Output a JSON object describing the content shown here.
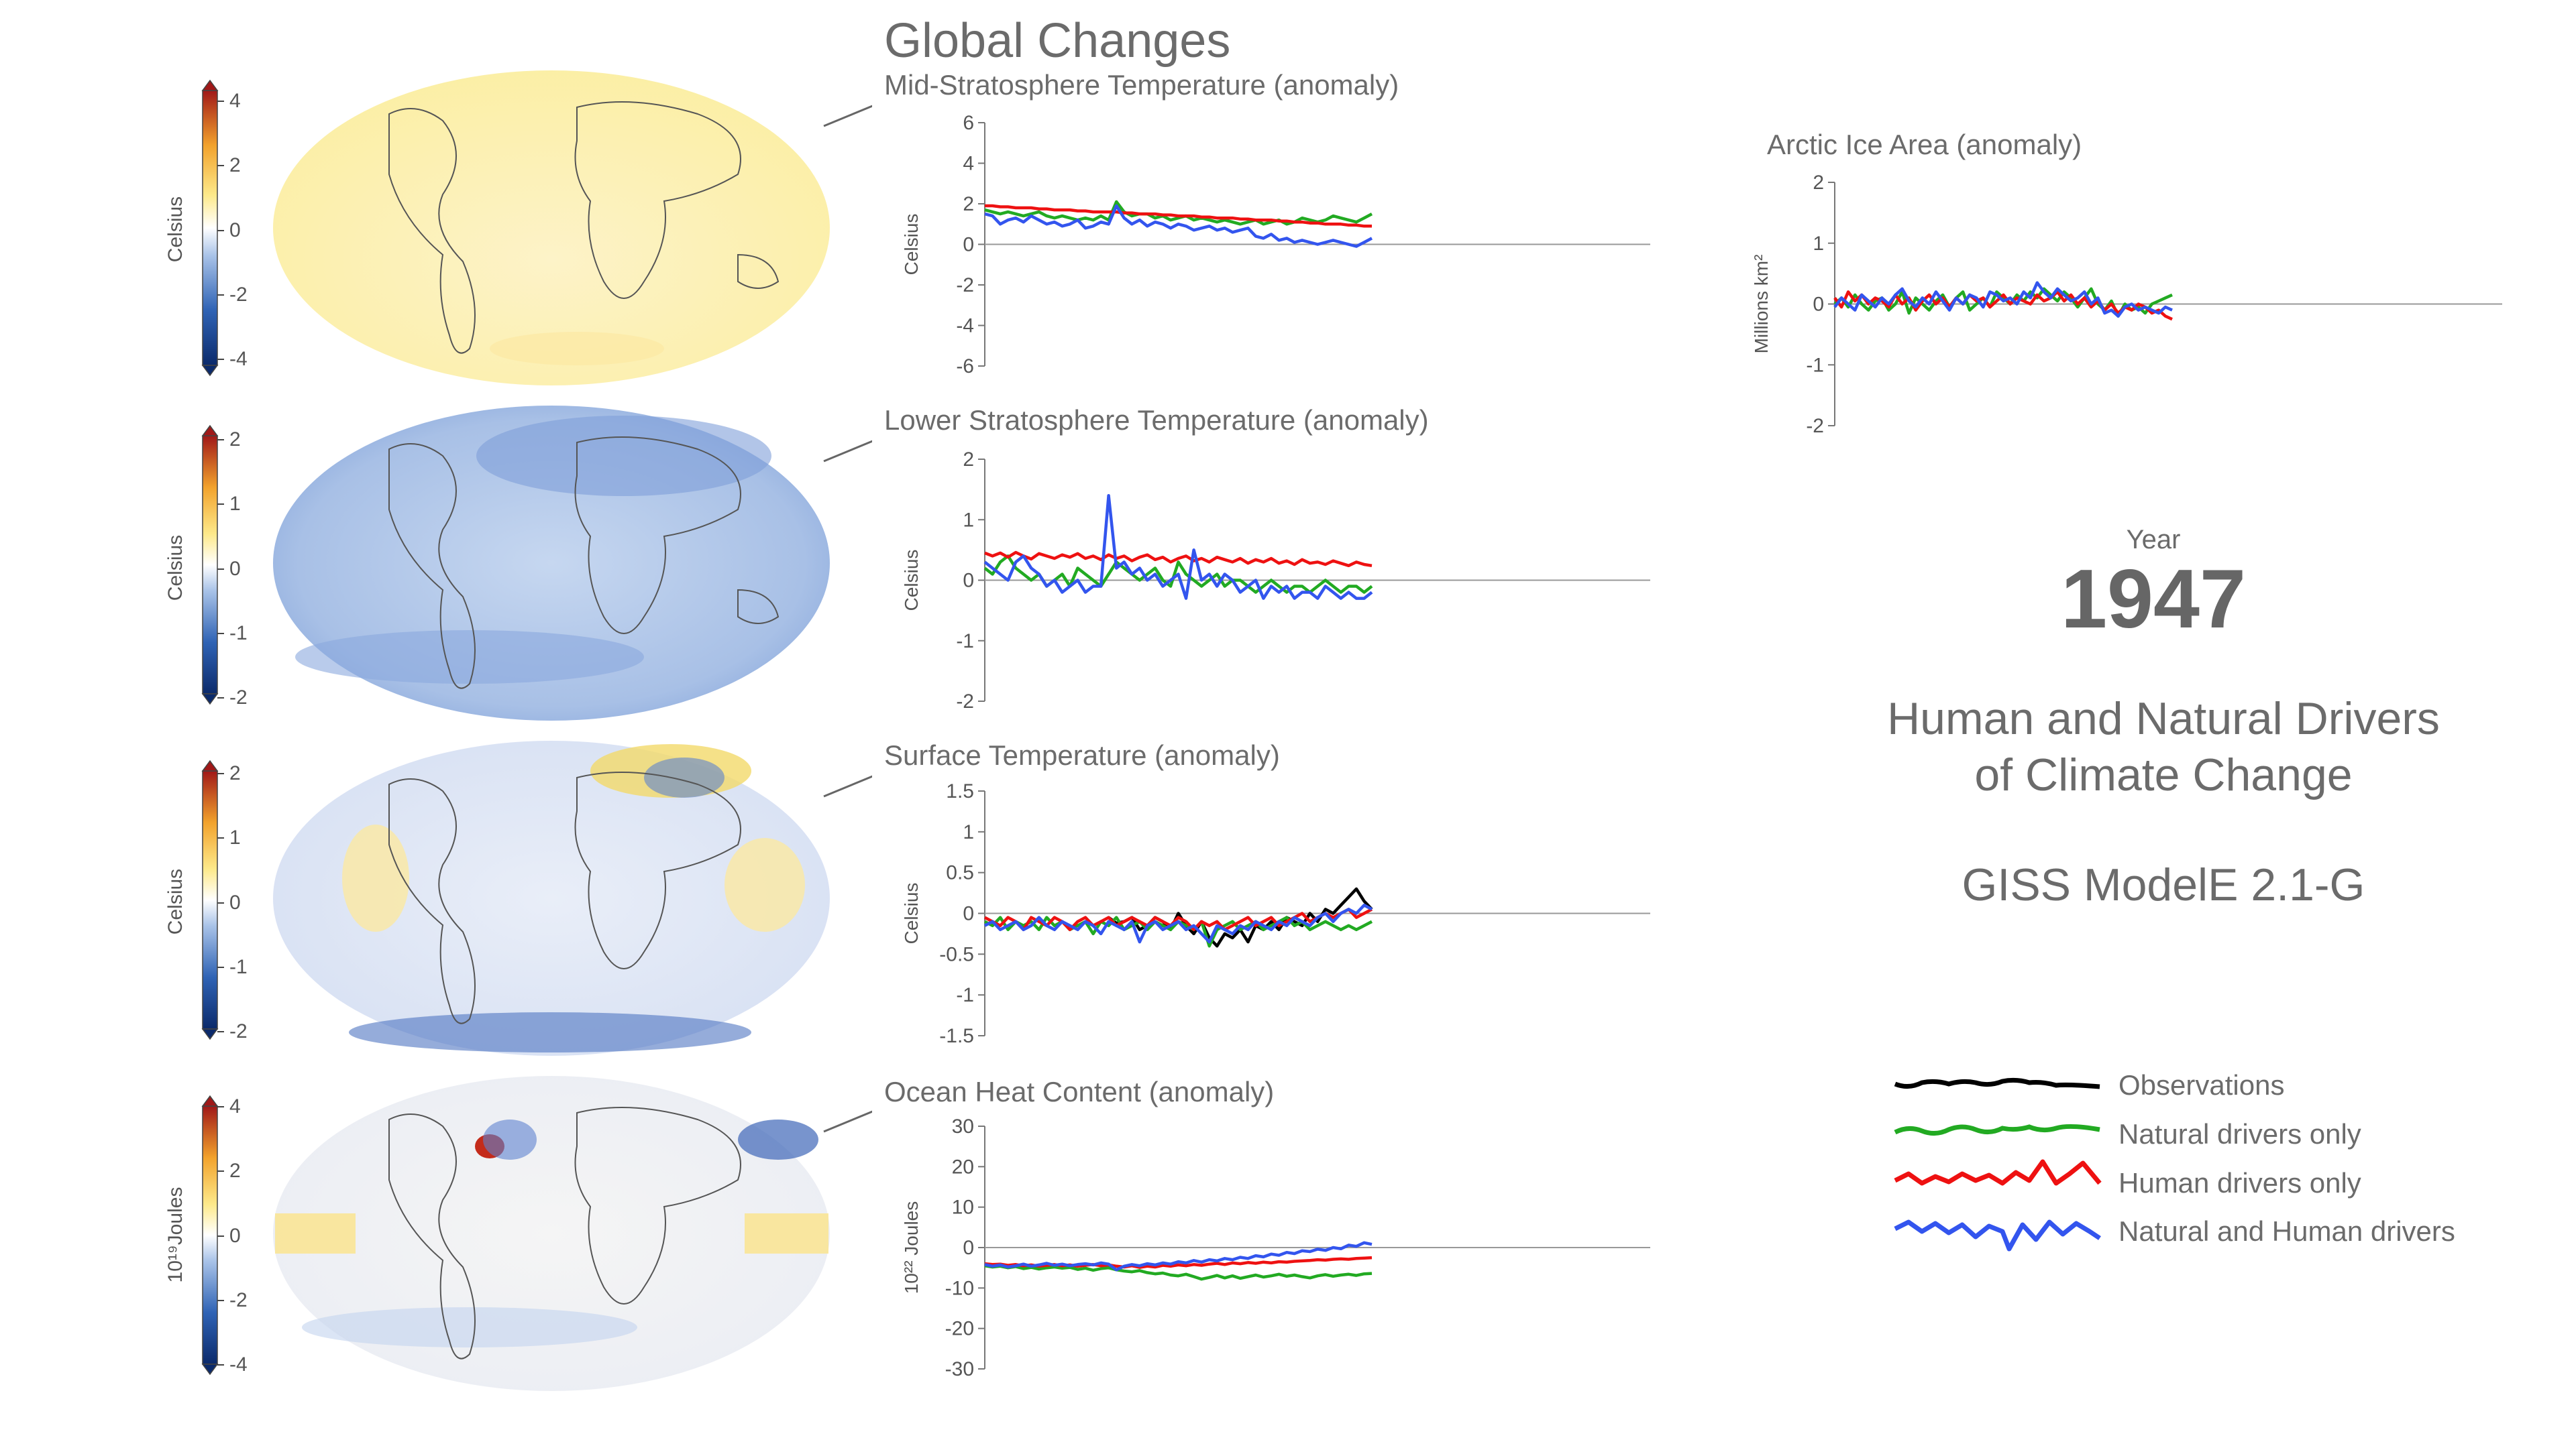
{
  "header": {
    "title": "Global Changes"
  },
  "year": {
    "label": "Year",
    "value": "1947"
  },
  "subtitle": {
    "line1": "Human and Natural Drivers",
    "line2": "of Climate Change"
  },
  "model": "GISS ModelE 2.1-G",
  "legend": {
    "items": [
      {
        "label": "Observations",
        "color": "#000000"
      },
      {
        "label": "Natural drivers only",
        "color": "#22aa22"
      },
      {
        "label": "Human drivers only",
        "color": "#ee1111"
      },
      {
        "label": "Natural and Human drivers",
        "color": "#3355ee"
      }
    ]
  },
  "colorbars": [
    {
      "label": "Celsius",
      "ticks": [
        "4",
        "2",
        "0",
        "-2",
        "-4"
      ]
    },
    {
      "label": "Celsius",
      "ticks": [
        "2",
        "1",
        "0",
        "-1",
        "-2"
      ]
    },
    {
      "label": "Celsius",
      "ticks": [
        "2",
        "1",
        "0",
        "-1",
        "-2"
      ]
    },
    {
      "label": "10¹⁹Joules",
      "ticks": [
        "4",
        "2",
        "0",
        "-2",
        "-4"
      ]
    }
  ],
  "chart_data": [
    {
      "type": "line",
      "title": "Mid-Stratosphere Temperature (anomaly)",
      "ylabel": "Celsius",
      "ylim": [
        -6,
        6
      ],
      "yticks": [
        "6",
        "4",
        "2",
        "0",
        "-2",
        "-4",
        "-6"
      ],
      "series": [
        {
          "name": "Natural drivers only",
          "color": "#22aa22",
          "values": [
            1.7,
            1.6,
            1.5,
            1.6,
            1.5,
            1.4,
            1.5,
            1.6,
            1.4,
            1.3,
            1.4,
            1.3,
            1.2,
            1.3,
            1.2,
            1.4,
            1.2,
            2.1,
            1.6,
            1.4,
            1.5,
            1.5,
            1.3,
            1.4,
            1.2,
            1.3,
            1.4,
            1.2,
            1.3,
            1.2,
            1.1,
            1.2,
            1.1,
            1.0,
            1.1,
            1.2,
            1.0,
            1.1,
            1.2,
            1.0,
            1.1,
            1.3,
            1.2,
            1.1,
            1.2,
            1.4,
            1.3,
            1.2,
            1.1,
            1.3,
            1.5
          ]
        },
        {
          "name": "Human drivers only",
          "color": "#ee1111",
          "values": [
            1.9,
            1.9,
            1.85,
            1.85,
            1.8,
            1.8,
            1.8,
            1.75,
            1.75,
            1.7,
            1.7,
            1.7,
            1.65,
            1.65,
            1.6,
            1.6,
            1.6,
            1.6,
            1.55,
            1.55,
            1.5,
            1.5,
            1.5,
            1.45,
            1.45,
            1.4,
            1.4,
            1.4,
            1.35,
            1.35,
            1.3,
            1.3,
            1.3,
            1.25,
            1.25,
            1.2,
            1.2,
            1.2,
            1.15,
            1.15,
            1.1,
            1.1,
            1.05,
            1.05,
            1.0,
            1.0,
            1.0,
            0.95,
            0.95,
            0.9,
            0.9
          ]
        },
        {
          "name": "Natural and Human drivers",
          "color": "#3355ee",
          "values": [
            1.5,
            1.4,
            1.0,
            1.2,
            1.3,
            1.1,
            1.4,
            1.2,
            1.0,
            1.1,
            0.9,
            1.0,
            1.2,
            0.8,
            0.9,
            1.1,
            1.0,
            1.9,
            1.3,
            1.0,
            1.2,
            0.9,
            1.1,
            1.0,
            0.8,
            1.0,
            0.9,
            0.7,
            0.8,
            0.9,
            0.7,
            0.8,
            0.6,
            0.7,
            0.8,
            0.4,
            0.3,
            0.5,
            0.2,
            0.3,
            0.1,
            0.2,
            0.1,
            0.0,
            0.1,
            0.2,
            0.1,
            0.0,
            -0.1,
            0.1,
            0.3
          ]
        }
      ]
    },
    {
      "type": "line",
      "title": "Lower Stratosphere Temperature (anomaly)",
      "ylabel": "Celsius",
      "ylim": [
        -2,
        2
      ],
      "yticks": [
        "2",
        "1",
        "0",
        "-1",
        "-2"
      ],
      "series": [
        {
          "name": "Natural drivers only",
          "color": "#22aa22",
          "values": [
            0.2,
            0.1,
            0.3,
            0.4,
            0.2,
            0.1,
            0.0,
            0.1,
            -0.1,
            0.0,
            0.1,
            -0.1,
            0.2,
            0.1,
            0.0,
            -0.1,
            0.1,
            0.3,
            0.2,
            0.1,
            0.0,
            0.1,
            0.2,
            0.0,
            -0.1,
            0.3,
            0.1,
            0.0,
            -0.1,
            0.0,
            0.1,
            -0.1,
            0.0,
            0.0,
            -0.1,
            -0.2,
            -0.1,
            0.0,
            -0.1,
            -0.2,
            -0.1,
            -0.1,
            -0.2,
            -0.1,
            0.0,
            -0.1,
            -0.2,
            -0.1,
            -0.1,
            -0.2,
            -0.1
          ]
        },
        {
          "name": "Human drivers only",
          "color": "#ee1111",
          "values": [
            0.45,
            0.4,
            0.45,
            0.38,
            0.46,
            0.4,
            0.35,
            0.44,
            0.4,
            0.36,
            0.42,
            0.38,
            0.44,
            0.36,
            0.4,
            0.34,
            0.42,
            0.36,
            0.4,
            0.32,
            0.38,
            0.42,
            0.34,
            0.38,
            0.3,
            0.36,
            0.4,
            0.32,
            0.36,
            0.3,
            0.38,
            0.34,
            0.3,
            0.36,
            0.28,
            0.34,
            0.3,
            0.36,
            0.28,
            0.32,
            0.26,
            0.34,
            0.28,
            0.3,
            0.26,
            0.32,
            0.28,
            0.24,
            0.3,
            0.26,
            0.24
          ]
        },
        {
          "name": "Natural and Human drivers",
          "color": "#3355ee",
          "values": [
            0.3,
            0.2,
            0.1,
            0.0,
            0.3,
            0.4,
            0.2,
            0.1,
            -0.1,
            0.0,
            -0.2,
            -0.1,
            0.0,
            -0.2,
            -0.1,
            -0.1,
            1.4,
            0.2,
            0.3,
            0.1,
            0.2,
            0.0,
            0.1,
            -0.1,
            0.0,
            0.1,
            -0.3,
            0.5,
            0.0,
            0.1,
            -0.1,
            0.1,
            0.0,
            -0.2,
            -0.1,
            0.0,
            -0.3,
            -0.1,
            -0.2,
            -0.1,
            -0.3,
            -0.2,
            -0.2,
            -0.3,
            -0.1,
            -0.2,
            -0.3,
            -0.2,
            -0.3,
            -0.3,
            -0.2
          ]
        }
      ]
    },
    {
      "type": "line",
      "title": "Surface Temperature (anomaly)",
      "ylabel": "Celsius",
      "ylim": [
        -1.5,
        1.5
      ],
      "yticks": [
        "1.5",
        "1",
        "0.5",
        "0",
        "-0.5",
        "-1",
        "-1.5"
      ],
      "series": [
        {
          "name": "Observations",
          "color": "#000000",
          "values": [
            null,
            null,
            null,
            null,
            null,
            null,
            null,
            null,
            null,
            null,
            null,
            null,
            null,
            null,
            null,
            null,
            -0.05,
            -0.12,
            -0.1,
            -0.05,
            -0.2,
            -0.15,
            -0.05,
            -0.1,
            -0.2,
            0.0,
            -0.15,
            -0.25,
            -0.1,
            -0.3,
            -0.4,
            -0.25,
            -0.3,
            -0.2,
            -0.35,
            -0.15,
            -0.2,
            -0.1,
            -0.2,
            -0.05,
            -0.1,
            -0.15,
            0.0,
            -0.1,
            0.05,
            0.0,
            0.1,
            0.2,
            0.3,
            0.15,
            0.05
          ]
        },
        {
          "name": "Natural drivers only",
          "color": "#22aa22",
          "values": [
            -0.1,
            -0.15,
            -0.05,
            -0.2,
            -0.1,
            -0.15,
            -0.1,
            -0.2,
            -0.05,
            -0.15,
            -0.1,
            -0.2,
            -0.15,
            -0.1,
            -0.25,
            -0.1,
            -0.15,
            -0.05,
            -0.2,
            -0.15,
            -0.1,
            -0.2,
            -0.1,
            -0.15,
            -0.2,
            -0.1,
            -0.15,
            -0.2,
            -0.1,
            -0.4,
            -0.2,
            -0.15,
            -0.1,
            -0.2,
            -0.15,
            -0.1,
            -0.2,
            -0.15,
            -0.1,
            -0.05,
            -0.15,
            -0.1,
            -0.2,
            -0.15,
            -0.1,
            -0.15,
            -0.2,
            -0.15,
            -0.2,
            -0.15,
            -0.1
          ]
        },
        {
          "name": "Human drivers only",
          "color": "#ee1111",
          "values": [
            -0.05,
            -0.1,
            -0.15,
            -0.05,
            -0.1,
            -0.2,
            -0.05,
            -0.1,
            -0.15,
            -0.05,
            -0.1,
            -0.2,
            -0.1,
            -0.05,
            -0.15,
            -0.1,
            -0.05,
            -0.15,
            -0.1,
            -0.05,
            -0.1,
            -0.15,
            -0.05,
            -0.1,
            -0.15,
            -0.05,
            -0.1,
            -0.2,
            -0.1,
            -0.15,
            -0.1,
            -0.2,
            -0.15,
            -0.1,
            -0.05,
            -0.15,
            -0.1,
            -0.05,
            -0.15,
            -0.1,
            -0.05,
            0.0,
            -0.1,
            -0.05,
            0.0,
            -0.05,
            0.0,
            0.05,
            -0.05,
            0.0,
            0.05
          ]
        },
        {
          "name": "Natural and Human drivers",
          "color": "#3355ee",
          "values": [
            -0.15,
            -0.1,
            -0.2,
            -0.15,
            -0.1,
            -0.2,
            -0.15,
            -0.05,
            -0.15,
            -0.2,
            -0.1,
            -0.15,
            -0.2,
            -0.1,
            -0.15,
            -0.25,
            -0.1,
            -0.15,
            -0.2,
            -0.1,
            -0.35,
            -0.15,
            -0.1,
            -0.2,
            -0.15,
            -0.1,
            -0.2,
            -0.15,
            -0.25,
            -0.35,
            -0.15,
            -0.2,
            -0.25,
            -0.15,
            -0.2,
            -0.1,
            -0.15,
            -0.2,
            -0.1,
            -0.15,
            -0.05,
            -0.1,
            -0.15,
            -0.05,
            0.0,
            -0.1,
            0.0,
            0.05,
            0.0,
            0.1,
            0.05
          ]
        }
      ]
    },
    {
      "type": "line",
      "title": "Ocean Heat Content (anomaly)",
      "ylabel": "10²² Joules",
      "ylim": [
        -30,
        30
      ],
      "yticks": [
        "30",
        "20",
        "10",
        "0",
        "-10",
        "-20",
        "-30"
      ],
      "series": [
        {
          "name": "Natural drivers only",
          "color": "#22aa22",
          "values": [
            -4.5,
            -4.8,
            -4.6,
            -5.0,
            -4.7,
            -5.2,
            -4.9,
            -5.3,
            -5.0,
            -4.8,
            -5.1,
            -4.9,
            -5.4,
            -5.1,
            -5.6,
            -5.2,
            -5.0,
            -5.5,
            -5.8,
            -6.0,
            -5.7,
            -6.2,
            -6.5,
            -6.3,
            -6.8,
            -7.0,
            -6.6,
            -7.2,
            -7.8,
            -7.4,
            -6.9,
            -7.5,
            -7.0,
            -7.6,
            -7.2,
            -6.8,
            -7.3,
            -7.0,
            -6.6,
            -7.1,
            -6.8,
            -7.2,
            -7.5,
            -7.0,
            -6.7,
            -7.1,
            -6.8,
            -6.6,
            -6.9,
            -6.5,
            -6.4
          ]
        },
        {
          "name": "Human drivers only",
          "color": "#ee1111",
          "values": [
            -4.0,
            -4.2,
            -4.1,
            -4.4,
            -4.2,
            -4.5,
            -4.3,
            -4.6,
            -4.4,
            -4.2,
            -4.5,
            -4.3,
            -4.6,
            -4.4,
            -4.2,
            -4.5,
            -4.3,
            -4.6,
            -4.8,
            -4.5,
            -4.9,
            -4.6,
            -4.8,
            -4.4,
            -4.6,
            -4.3,
            -4.5,
            -4.2,
            -4.4,
            -4.1,
            -3.9,
            -4.2,
            -3.8,
            -4.0,
            -3.7,
            -3.9,
            -3.6,
            -3.8,
            -3.5,
            -3.6,
            -3.4,
            -3.3,
            -3.2,
            -3.0,
            -3.1,
            -2.9,
            -2.8,
            -2.9,
            -2.7,
            -2.6,
            -2.5
          ]
        },
        {
          "name": "Natural and Human drivers",
          "color": "#3355ee",
          "values": [
            -4.2,
            -4.6,
            -4.3,
            -4.8,
            -4.5,
            -4.1,
            -4.6,
            -4.3,
            -3.9,
            -4.4,
            -4.1,
            -4.5,
            -4.2,
            -4.0,
            -4.3,
            -3.8,
            -4.1,
            -5.5,
            -4.6,
            -4.2,
            -4.5,
            -4.0,
            -4.3,
            -3.8,
            -4.1,
            -3.5,
            -3.8,
            -3.2,
            -3.6,
            -3.0,
            -3.3,
            -2.7,
            -3.0,
            -2.4,
            -2.7,
            -2.0,
            -2.3,
            -1.6,
            -1.9,
            -1.2,
            -1.5,
            -0.8,
            -1.0,
            -0.4,
            -0.7,
            0.0,
            -0.3,
            0.6,
            0.3,
            1.2,
            0.8
          ]
        }
      ]
    },
    {
      "type": "line",
      "title": "Arctic Ice Area (anomaly)",
      "ylabel": "Millions km²",
      "ylim": [
        -2,
        2
      ],
      "yticks": [
        "2",
        "1",
        "0",
        "-1",
        "-2"
      ],
      "series": [
        {
          "name": "Natural drivers only",
          "color": "#22aa22",
          "values": [
            0.0,
            0.1,
            -0.05,
            0.15,
            0.0,
            -0.1,
            0.05,
            0.1,
            -0.1,
            0.0,
            0.2,
            -0.15,
            0.1,
            0.0,
            -0.1,
            0.05,
            0.15,
            -0.05,
            0.1,
            0.2,
            -0.1,
            0.0,
            0.1,
            -0.05,
            0.2,
            0.1,
            0.0,
            0.15,
            0.05,
            0.2,
            0.1,
            0.25,
            0.15,
            0.05,
            0.2,
            0.1,
            -0.05,
            0.1,
            0.25,
            0.0,
            -0.1,
            0.05,
            -0.2,
            0.0,
            -0.1,
            -0.05,
            -0.15,
            0.0,
            0.05,
            0.1,
            0.15
          ]
        },
        {
          "name": "Human drivers only",
          "color": "#ee1111",
          "values": [
            0.1,
            -0.05,
            0.2,
            0.05,
            0.15,
            0.0,
            0.1,
            0.05,
            -0.05,
            0.15,
            0.0,
            0.1,
            -0.1,
            0.05,
            0.15,
            0.0,
            0.1,
            -0.05,
            0.1,
            0.0,
            0.15,
            0.05,
            0.1,
            -0.05,
            0.05,
            0.15,
            0.0,
            0.1,
            0.05,
            0.0,
            0.15,
            0.05,
            0.1,
            0.2,
            0.05,
            0.15,
            0.0,
            0.1,
            -0.05,
            0.05,
            -0.1,
            0.0,
            -0.15,
            -0.05,
            -0.1,
            0.0,
            -0.05,
            -0.15,
            -0.1,
            -0.2,
            -0.25
          ]
        },
        {
          "name": "Natural and Human drivers",
          "color": "#3355ee",
          "values": [
            -0.05,
            0.1,
            0.0,
            -0.1,
            0.15,
            0.05,
            -0.05,
            0.1,
            0.0,
            0.15,
            0.25,
            0.05,
            -0.05,
            0.1,
            0.0,
            0.2,
            0.05,
            -0.1,
            0.1,
            0.0,
            0.15,
            0.1,
            -0.05,
            0.2,
            0.15,
            0.05,
            0.1,
            0.0,
            0.2,
            0.1,
            0.35,
            0.2,
            0.1,
            0.25,
            0.15,
            0.05,
            0.1,
            0.2,
            0.0,
            0.1,
            -0.15,
            -0.1,
            -0.2,
            -0.05,
            0.0,
            -0.1,
            -0.05,
            -0.1,
            -0.15,
            -0.05,
            -0.1
          ]
        }
      ]
    }
  ]
}
